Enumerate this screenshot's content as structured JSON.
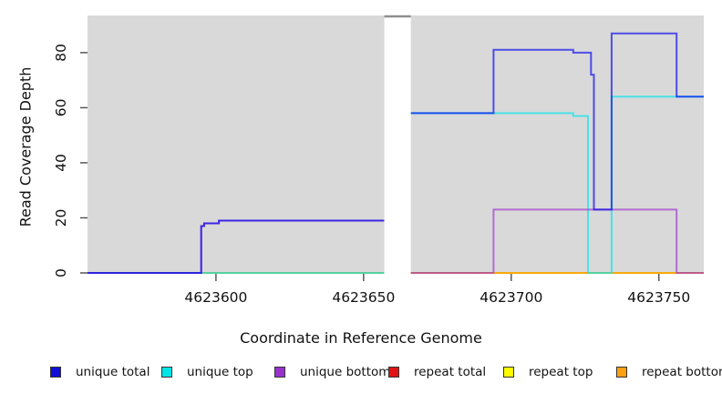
{
  "figure": {
    "background_color": "#ffffff",
    "plot_background_color": "#d9d9d9",
    "gap_cap_color": "#8e8e8e"
  },
  "chart_data": {
    "type": "line",
    "title": "",
    "xlabel": "Coordinate in Reference Genome",
    "ylabel": "Read Coverage Depth",
    "xlim": [
      4623556.5,
      4623765.2
    ],
    "ylim": [
      0,
      93.5
    ],
    "xticks": [
      4623600,
      4623650,
      4623700,
      4623750
    ],
    "yticks": [
      0,
      20,
      40,
      60,
      80
    ],
    "grid": false,
    "legend_position": "bottom",
    "line_opacity": 0.65,
    "line_width": 2,
    "gap_region": {
      "x_start": 4623657,
      "x_end": 4623666
    },
    "draw_order": [
      "repeat total",
      "repeat top",
      "repeat bottom",
      "unique top",
      "unique bottom",
      "unique total"
    ],
    "series": [
      {
        "name": "unique total",
        "color": "#0000ee",
        "segments": [
          [
            [
              4623556.5,
              0
            ],
            [
              4623595,
              0
            ],
            [
              4623595,
              17
            ],
            [
              4623596,
              17
            ],
            [
              4623596,
              18
            ],
            [
              4623601,
              18
            ],
            [
              4623601,
              19
            ],
            [
              4623657,
              19
            ]
          ],
          [
            [
              4623666,
              58
            ],
            [
              4623694,
              58
            ],
            [
              4623694,
              81
            ],
            [
              4623721,
              81
            ],
            [
              4623721,
              80
            ],
            [
              4623727,
              80
            ],
            [
              4623727,
              72
            ],
            [
              4623728,
              72
            ],
            [
              4623728,
              23
            ],
            [
              4623734,
              23
            ],
            [
              4623734,
              87
            ],
            [
              4623756,
              87
            ],
            [
              4623756,
              64
            ],
            [
              4623765.2,
              64
            ]
          ]
        ]
      },
      {
        "name": "unique top",
        "color": "#00e5ee",
        "segments": [
          [
            [
              4623556.5,
              0
            ],
            [
              4623657,
              0
            ]
          ],
          [
            [
              4623666,
              58
            ],
            [
              4623721,
              58
            ],
            [
              4623721,
              57
            ],
            [
              4623726,
              57
            ],
            [
              4623726,
              0
            ],
            [
              4623734,
              0
            ],
            [
              4623734,
              64
            ],
            [
              4623765.2,
              64
            ]
          ]
        ]
      },
      {
        "name": "unique bottom",
        "color": "#9932cc",
        "segments": [
          [
            [
              4623556.5,
              0
            ],
            [
              4623595,
              0
            ],
            [
              4623595,
              17
            ],
            [
              4623596,
              17
            ],
            [
              4623596,
              18
            ],
            [
              4623601,
              18
            ],
            [
              4623601,
              19
            ],
            [
              4623657,
              19
            ]
          ],
          [
            [
              4623666,
              0
            ],
            [
              4623694,
              0
            ],
            [
              4623694,
              23
            ],
            [
              4623756,
              23
            ],
            [
              4623756,
              0
            ],
            [
              4623765.2,
              0
            ]
          ]
        ]
      },
      {
        "name": "repeat total",
        "color": "#dc1414",
        "segments": [
          [
            [
              4623556.5,
              0
            ],
            [
              4623657,
              0
            ]
          ],
          [
            [
              4623666,
              0
            ],
            [
              4623765.2,
              0
            ]
          ]
        ]
      },
      {
        "name": "repeat top",
        "color": "#ffff00",
        "segments": [
          [
            [
              4623556.5,
              0
            ],
            [
              4623657,
              0
            ]
          ],
          [
            [
              4623666,
              0
            ],
            [
              4623765.2,
              0
            ]
          ]
        ]
      },
      {
        "name": "repeat bottom",
        "color": "#ff9900",
        "segments": [
          [
            [
              4623556.5,
              0
            ],
            [
              4623657,
              0
            ]
          ],
          [
            [
              4623666,
              0
            ],
            [
              4623765.2,
              0
            ]
          ]
        ]
      }
    ]
  },
  "legend": {
    "items": [
      {
        "label": "unique total",
        "color": "#0f0fd6"
      },
      {
        "label": "unique top",
        "color": "#00e5e5"
      },
      {
        "label": "unique bottom",
        "color": "#9932cc"
      },
      {
        "label": "repeat total",
        "color": "#e01414"
      },
      {
        "label": "repeat top",
        "color": "#fdfd00"
      },
      {
        "label": "repeat bottom",
        "color": "#ffa010"
      }
    ]
  }
}
